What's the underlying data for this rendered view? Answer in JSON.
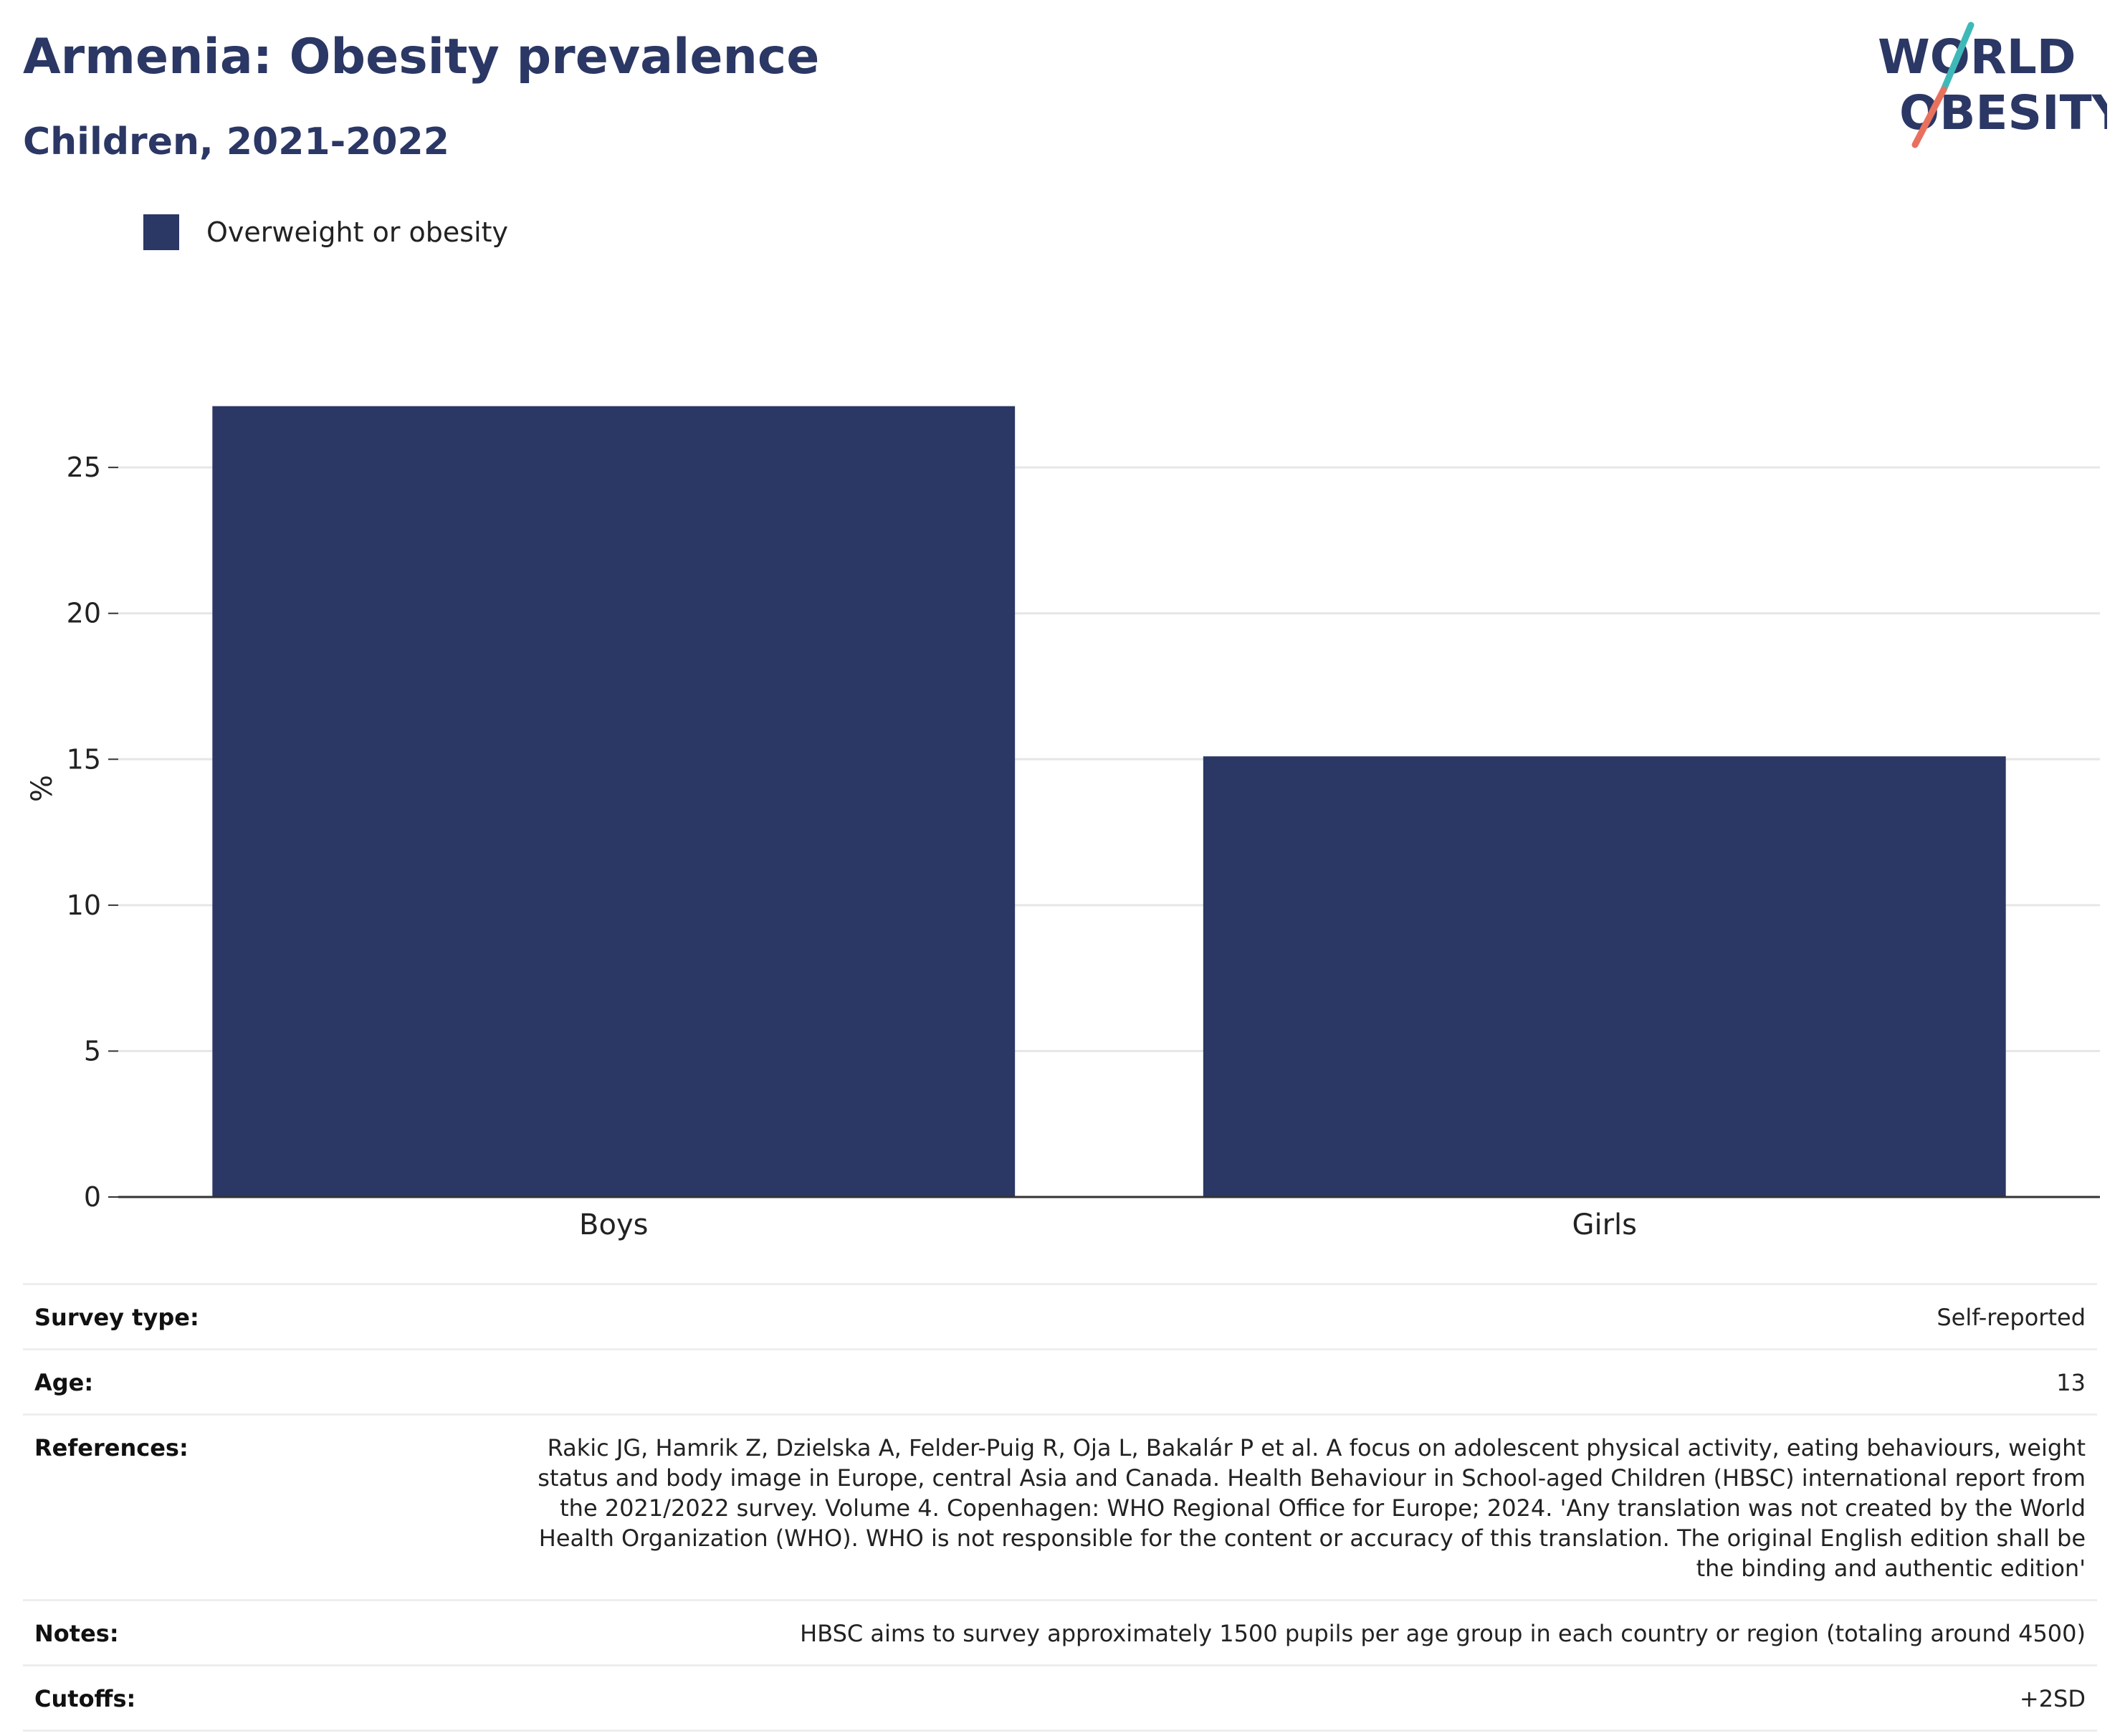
{
  "header": {
    "title": "Armenia: Obesity prevalence",
    "subtitle": "Children, 2021-2022"
  },
  "logo": {
    "line1": "WORLD",
    "line2": "OBESITY",
    "colors": {
      "text": "#2b3764",
      "slash_top": "#3fb8b8",
      "slash_bottom": "#e8715e"
    }
  },
  "legend": {
    "items": [
      {
        "label": "Overweight or obesity",
        "color": "#2b3764"
      }
    ]
  },
  "chart_data": {
    "type": "bar",
    "categories": [
      "Boys",
      "Girls"
    ],
    "series": [
      {
        "name": "Overweight or obesity",
        "values": [
          27.1,
          15.1
        ],
        "color": "#2b3764"
      }
    ],
    "title": "Armenia: Obesity prevalence",
    "subtitle": "Children, 2021-2022",
    "xlabel": "",
    "ylabel": "%",
    "ylim": [
      0,
      28
    ],
    "yticks": [
      0,
      5,
      10,
      15,
      20,
      25
    ],
    "grid": true,
    "legend_position": "top-left"
  },
  "info": {
    "rows": [
      {
        "label": "Survey type:",
        "value": "Self-reported"
      },
      {
        "label": "Age:",
        "value": "13"
      },
      {
        "label": "References:",
        "value": "Rakic JG, Hamrik Z, Dzielska A, Felder-Puig R, Oja L, Bakalár P et al. A focus on adolescent physical activity, eating behaviours, weight status and body image in Europe, central Asia and Canada. Health Behaviour in School-aged Children (HBSC) international report from the 2021/2022 survey. Volume 4. Copenhagen: WHO Regional Office for Europe; 2024. 'Any translation was not created by the World Health Organization (WHO). WHO is not responsible for the content or accuracy of this translation. The original English edition shall be the binding and authentic edition'"
      },
      {
        "label": "Notes:",
        "value": "HBSC aims to survey approximately 1500 pupils per age group in each country or region (totaling around 4500)"
      },
      {
        "label": "Cutoffs:",
        "value": "+2SD"
      }
    ]
  }
}
